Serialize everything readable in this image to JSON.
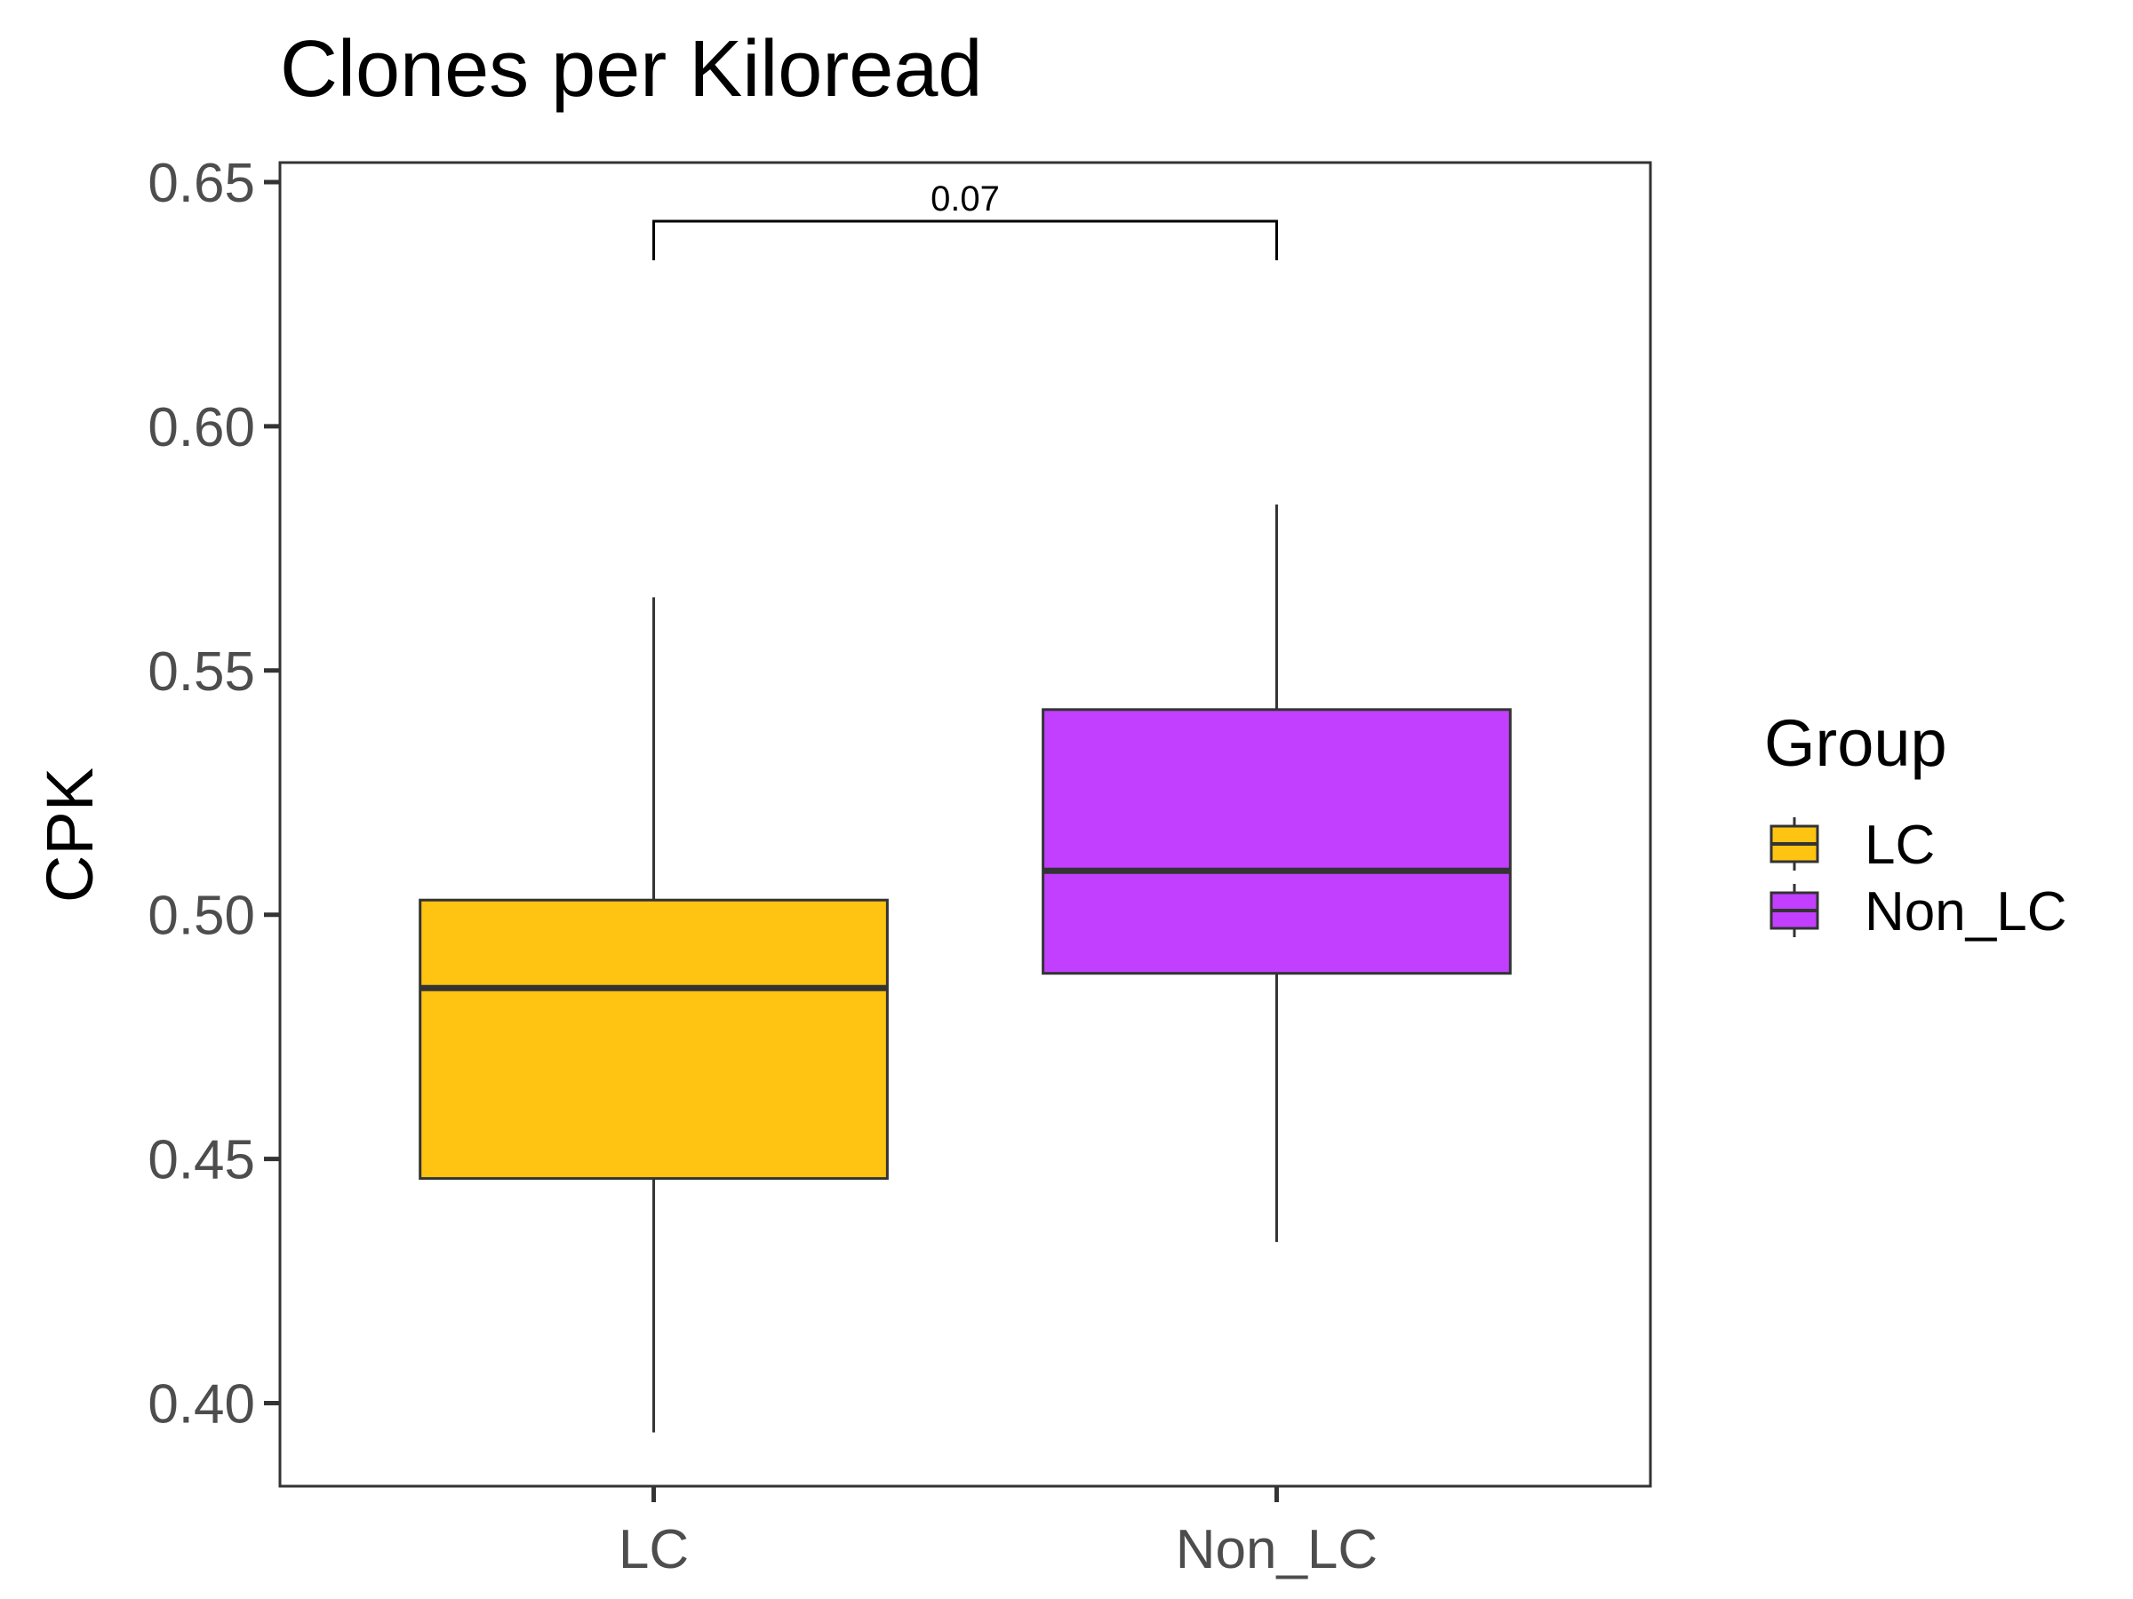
{
  "chart_data": {
    "type": "box",
    "title": "Clones per Kiloread",
    "xlabel": "",
    "ylabel": "CPK",
    "ylim": [
      0.383,
      0.654
    ],
    "yticks": [
      0.4,
      0.45,
      0.5,
      0.55,
      0.6,
      0.65
    ],
    "ytick_labels": [
      "0.40",
      "0.45",
      "0.50",
      "0.55",
      "0.60",
      "0.65"
    ],
    "categories": [
      "LC",
      "Non_LC"
    ],
    "boxes": [
      {
        "name": "LC",
        "color": "#FFC312",
        "whisker_low": 0.394,
        "q1": 0.446,
        "median": 0.485,
        "q3": 0.503,
        "whisker_high": 0.565
      },
      {
        "name": "Non_LC",
        "color": "#C23FFF",
        "whisker_low": 0.433,
        "q1": 0.488,
        "median": 0.509,
        "q3": 0.542,
        "whisker_high": 0.584
      }
    ],
    "annotation": {
      "label": "0.07",
      "y": 0.642,
      "tick_low": 0.634
    },
    "legend": {
      "title": "Group",
      "position": "right",
      "entries": [
        "LC",
        "Non_LC"
      ]
    },
    "grid": false
  }
}
